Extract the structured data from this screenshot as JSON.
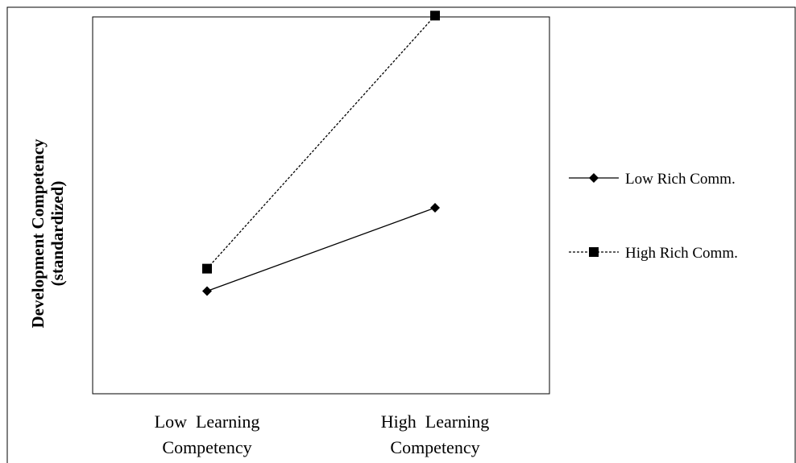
{
  "chart_data": {
    "type": "line",
    "categories": [
      "Low  Learning Competency",
      "High  Learning Competency"
    ],
    "category_lines": [
      [
        "Low  Learning",
        "Competency"
      ],
      [
        "High  Learning",
        "Competency"
      ]
    ],
    "ylabel_lines": [
      "Development  Competency",
      "(standardized)"
    ],
    "ylim": [
      0,
      100
    ],
    "grid": false,
    "legend_position": "right",
    "series": [
      {
        "name": "Low Rich Comm.",
        "values": [
          22,
          48
        ],
        "marker": "diamond",
        "line_style": "solid",
        "color": "#000000"
      },
      {
        "name": "High Rich Comm.",
        "values": [
          29,
          108
        ],
        "marker": "square",
        "line_style": "dotted",
        "color": "#000000"
      }
    ]
  }
}
